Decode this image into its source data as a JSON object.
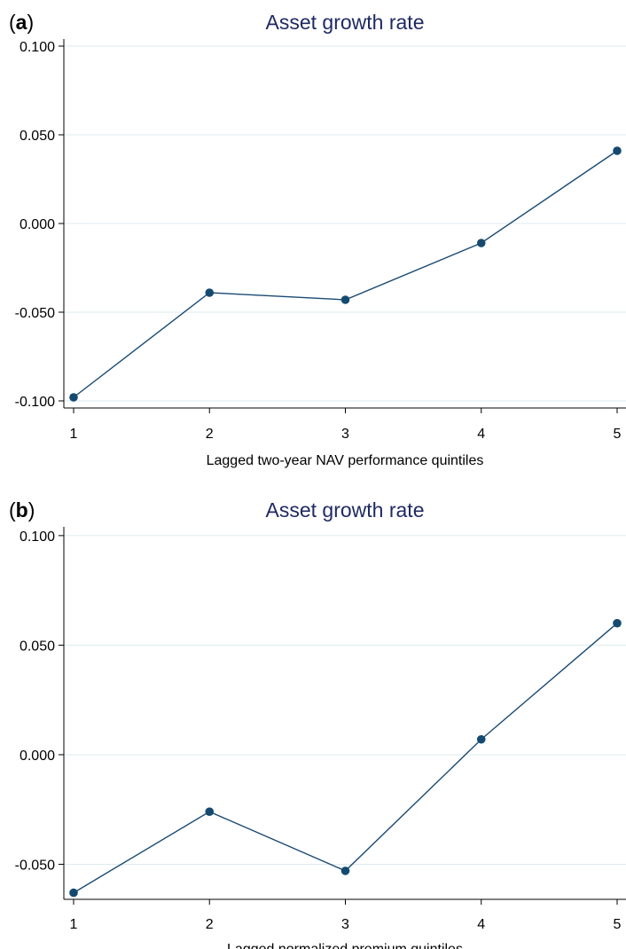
{
  "colors": {
    "series": "#1a4a72",
    "marker": "#154a70",
    "grid": "#dcebf0",
    "axis": "#000000",
    "title": "#1f2a63"
  },
  "chart_data": [
    {
      "type": "line",
      "panel_label": "a",
      "title": "Asset growth rate",
      "xlabel": "Lagged two-year NAV performance quintiles",
      "ylabel": "",
      "x": [
        1,
        2,
        3,
        4,
        5
      ],
      "x_tick_labels": [
        "1",
        "2",
        "3",
        "4",
        "5"
      ],
      "values": [
        -0.098,
        -0.039,
        -0.043,
        -0.011,
        0.041
      ],
      "y_ticks": [
        0.1,
        0.05,
        0.0,
        -0.05,
        -0.1
      ],
      "y_tick_labels": [
        "0.100",
        "0.050",
        "0.000",
        "-0.050",
        "-0.100"
      ],
      "ylim": [
        -0.104,
        0.104
      ],
      "xlim": [
        1,
        5
      ],
      "grid": true,
      "legend": "none"
    },
    {
      "type": "line",
      "panel_label": "b",
      "title": "Asset growth rate",
      "xlabel": "Lagged normalized premium quintiles",
      "ylabel": "",
      "x": [
        1,
        2,
        3,
        4,
        5
      ],
      "x_tick_labels": [
        "1",
        "2",
        "3",
        "4",
        "5"
      ],
      "values": [
        -0.063,
        -0.026,
        -0.053,
        0.007,
        0.06
      ],
      "y_ticks": [
        0.1,
        0.05,
        0.0,
        -0.05
      ],
      "y_tick_labels": [
        "0.100",
        "0.050",
        "0.000",
        "-0.050"
      ],
      "ylim": [
        -0.066,
        0.104
      ],
      "xlim": [
        1,
        5
      ],
      "grid": true,
      "legend": "none"
    }
  ]
}
